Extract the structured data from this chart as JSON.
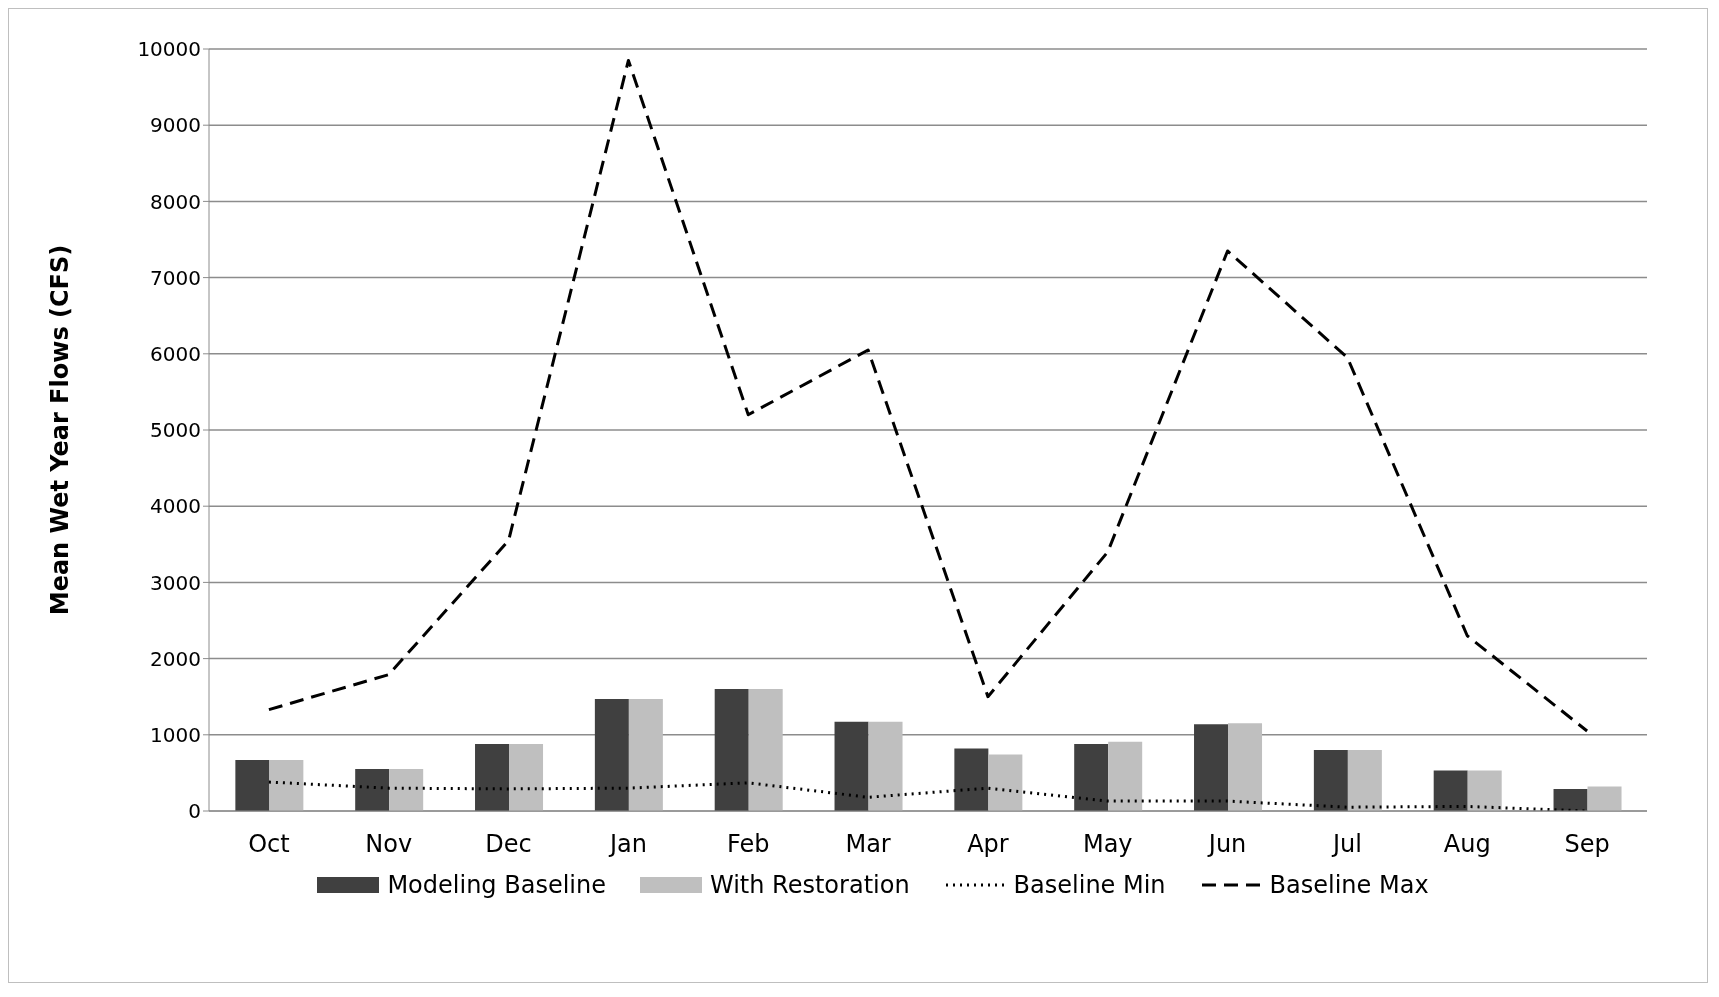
{
  "chart_data": {
    "type": "bar",
    "ylabel": "Mean Wet Year Flows (CFS)",
    "categories": [
      "Oct",
      "Nov",
      "Dec",
      "Jan",
      "Feb",
      "Mar",
      "Apr",
      "May",
      "Jun",
      "Jul",
      "Aug",
      "Sep"
    ],
    "series": [
      {
        "name": "Modeling Baseline",
        "color": "#404040",
        "values": [
          670,
          550,
          880,
          1470,
          1600,
          1170,
          820,
          880,
          1140,
          800,
          530,
          290
        ]
      },
      {
        "name": "With Restoration",
        "color": "#bfbfbf",
        "values": [
          670,
          550,
          880,
          1470,
          1600,
          1170,
          740,
          910,
          1150,
          800,
          530,
          320
        ]
      },
      {
        "name": "Baseline Min",
        "type": "line",
        "line_style": "dotted",
        "color": "#000000",
        "values": [
          380,
          300,
          290,
          300,
          370,
          180,
          300,
          130,
          130,
          50,
          60,
          0
        ]
      },
      {
        "name": "Baseline Max",
        "type": "line",
        "line_style": "dashed",
        "color": "#000000",
        "values": [
          1330,
          1790,
          3550,
          9850,
          5200,
          6050,
          1500,
          3400,
          7350,
          5950,
          2300,
          1050
        ]
      }
    ],
    "ylim": [
      0,
      10000
    ],
    "yticks": [
      0,
      1000,
      2000,
      3000,
      4000,
      5000,
      6000,
      7000,
      8000,
      9000,
      10000
    ],
    "grid": "y",
    "legend": "bottom",
    "marker": "none"
  }
}
